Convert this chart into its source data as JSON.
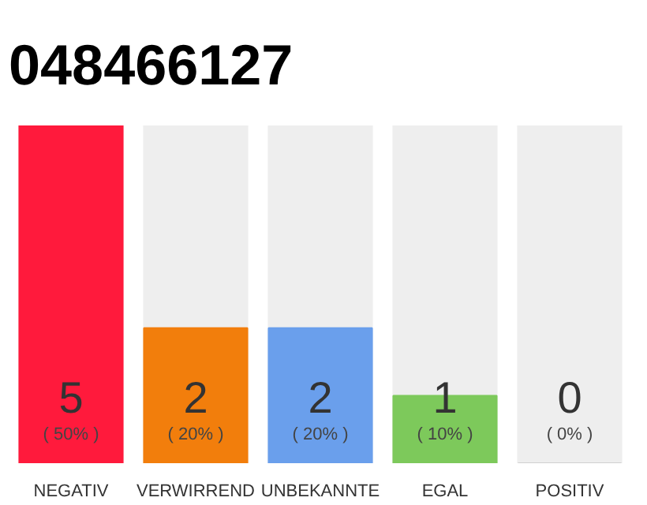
{
  "chart_data": {
    "type": "bar",
    "title": "048466127",
    "categories": [
      "NEGATIV",
      "VERWIRREND",
      "UNBEKANNTE",
      "EGAL",
      "POSITIV"
    ],
    "values": [
      5,
      2,
      2,
      1,
      0
    ],
    "colors": [
      "#ff1a3c",
      "#f27e0c",
      "#6a9fec",
      "#7dc95b",
      "#d0d0d0"
    ],
    "value_labels": [
      "5",
      "2",
      "2",
      "1",
      "0"
    ],
    "annotations": [
      {
        "text": "( 50% )",
        "x": "NEGATIV",
        "y": 0
      },
      {
        "text": "( 20% )",
        "x": "VERWIRREND",
        "y": 0
      },
      {
        "text": "( 20% )",
        "x": "UNBEKANNTE",
        "y": 0
      },
      {
        "text": "( 10% )",
        "x": "EGAL",
        "y": 0
      },
      {
        "text": "( 0% )",
        "x": "POSITIV",
        "y": 0
      }
    ],
    "tick_labels": "x",
    "grid": false
  }
}
